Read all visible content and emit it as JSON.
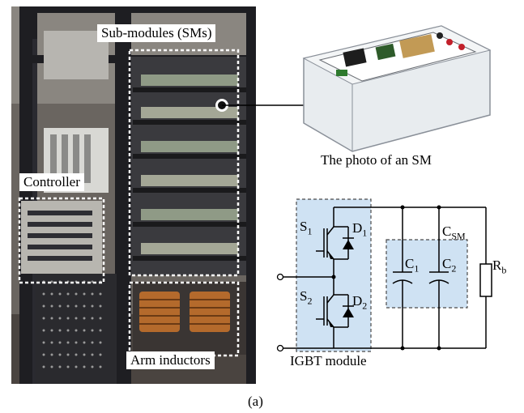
{
  "figure": {
    "rack_labels": {
      "submodules": "Sub-modules (SMs)",
      "controller": "Controller",
      "arm_inductors": "Arm inductors"
    },
    "sm_photo_caption": "The photo of an SM",
    "circuit": {
      "s1": "S",
      "s1_sub": "1",
      "d1": "D",
      "d1_sub": "1",
      "s2": "S",
      "s2_sub": "2",
      "d2": "D",
      "d2_sub": "2",
      "c1": "C",
      "c1_sub": "1",
      "c2": "C",
      "c2_sub": "2",
      "csm": "C",
      "csm_sub": "SM",
      "rb": "R",
      "rb_sub": "b",
      "igbt_module": "IGBT module"
    },
    "panel_label": "(a)"
  },
  "colors": {
    "highlight_fill": "#cfe2f3",
    "highlight_stroke": "#4a4a4a",
    "rack_frame": "#1e1e22"
  }
}
